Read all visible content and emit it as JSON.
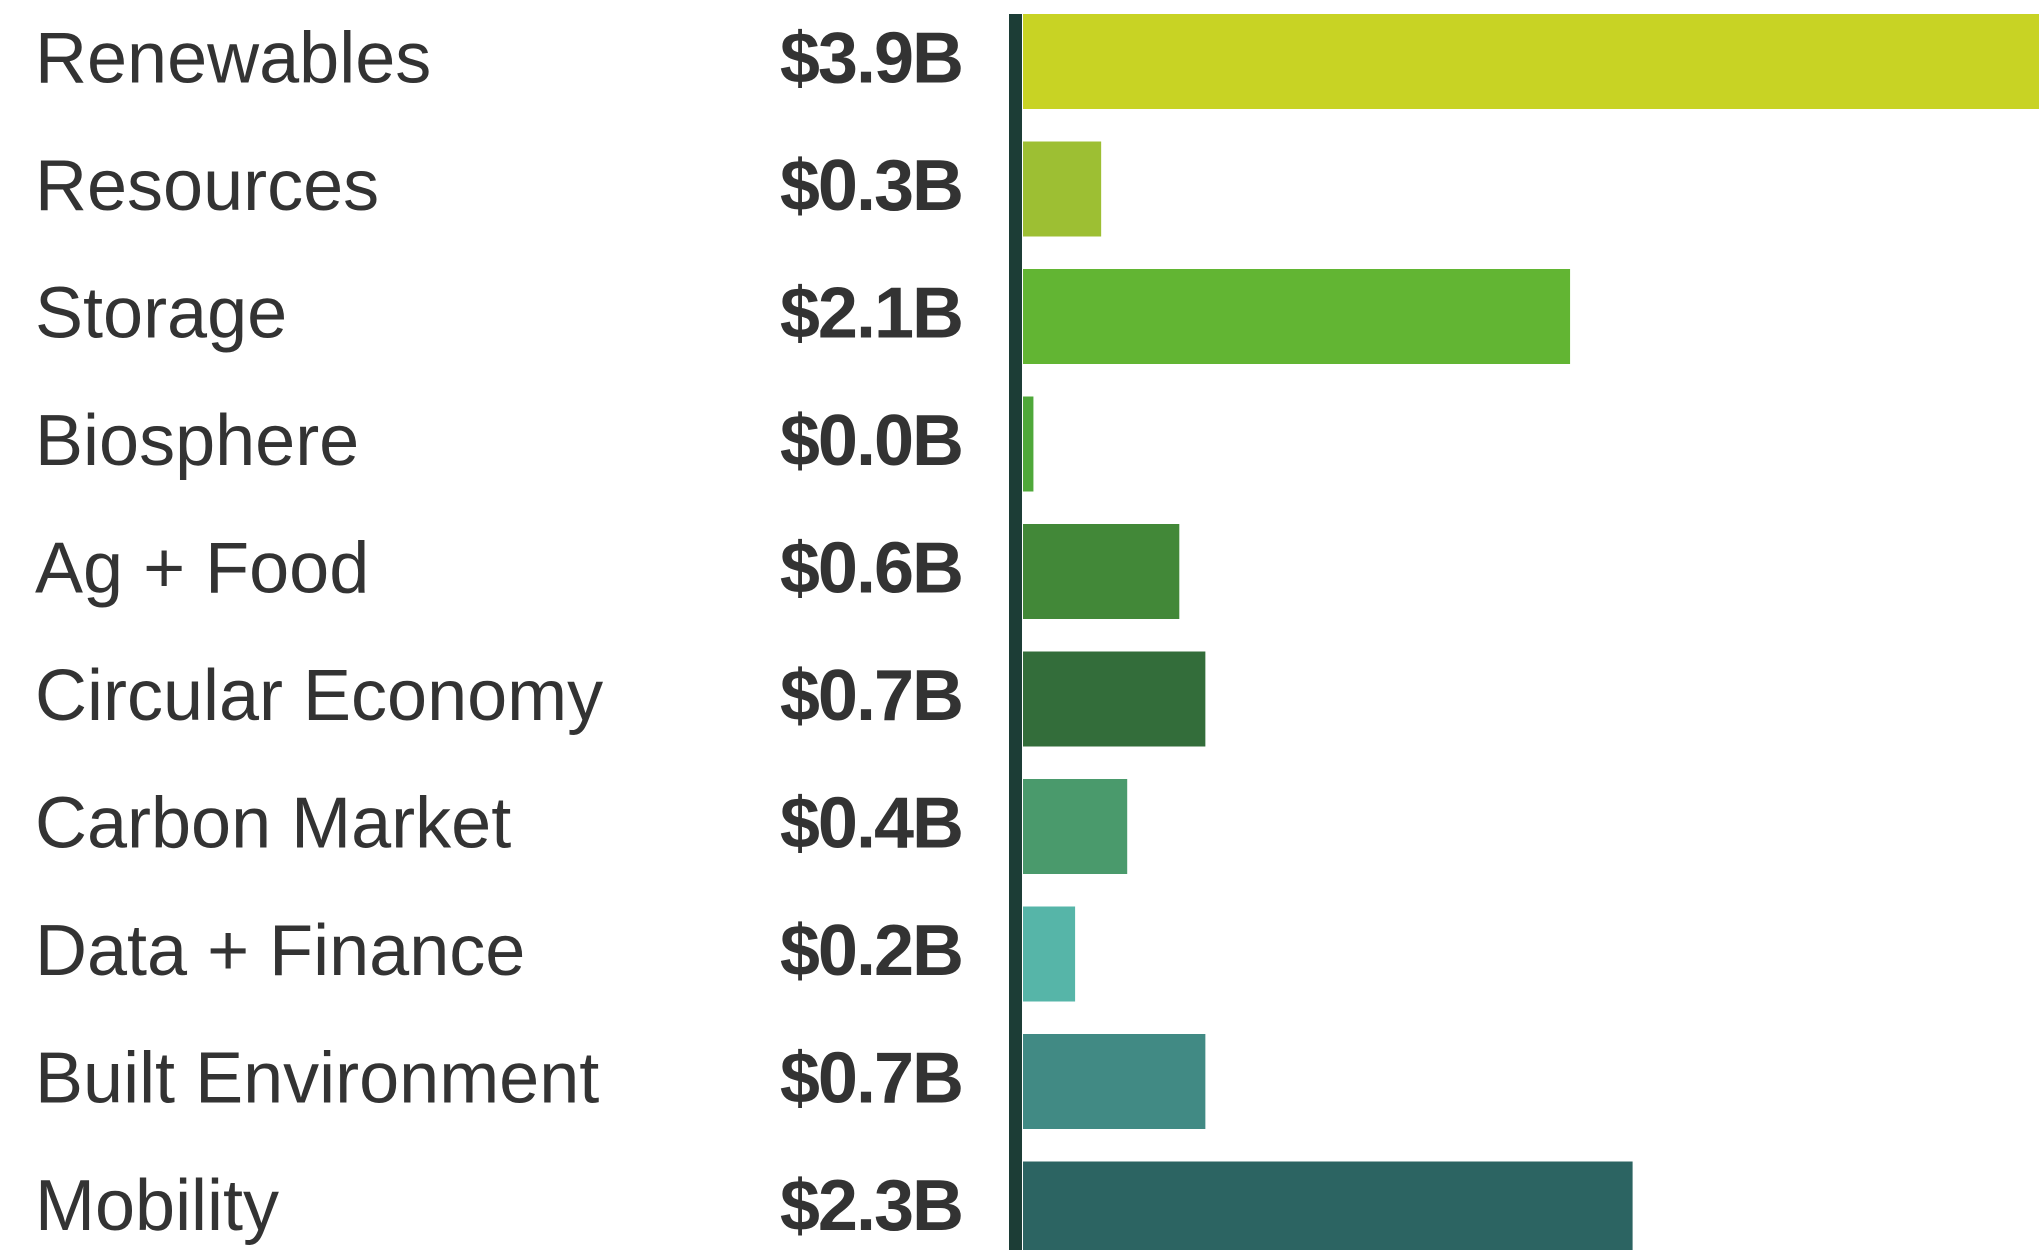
{
  "chart_data": {
    "type": "barh",
    "categories": [
      "Renewables",
      "Resources",
      "Storage",
      "Biosphere",
      "Ag + Food",
      "Circular Economy",
      "Carbon Market",
      "Data + Finance",
      "Built Environment",
      "Mobility"
    ],
    "values": [
      3.9,
      0.3,
      2.1,
      0.04,
      0.6,
      0.7,
      0.4,
      0.2,
      0.7,
      2.34
    ],
    "value_labels": [
      "$3.9B",
      "$0.3B",
      "$2.1B",
      "$0.0B",
      "$0.6B",
      "$0.7B",
      "$0.4B",
      "$0.2B",
      "$0.7B",
      "$2.3B"
    ],
    "colors": [
      "#c8d324",
      "#9dbf33",
      "#62b533",
      "#4fa83a",
      "#428838",
      "#336d3a",
      "#4a9a6c",
      "#56b5a8",
      "#418a84",
      "#2c6462"
    ],
    "xlim": [
      0,
      3.9
    ]
  }
}
